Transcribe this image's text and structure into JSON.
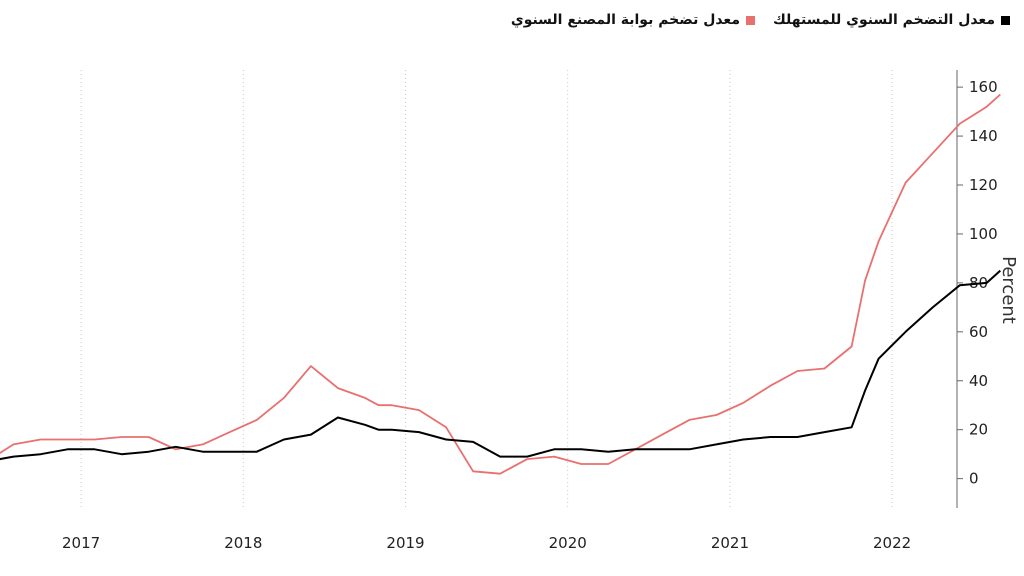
{
  "legend": {
    "cpi": "معدل التضخم السنوي للمستهلك",
    "ppi": "معدل تضخم بوابة المصنع السنوي"
  },
  "chart_data": {
    "type": "line",
    "ylabel": "Percent",
    "ylim": [
      -12,
      167
    ],
    "xlim": [
      2016.5,
      2022.4
    ],
    "yticks": [
      0,
      20,
      40,
      60,
      80,
      100,
      120,
      140,
      160
    ],
    "x_labels": [
      "2017",
      "2018",
      "2019",
      "2020",
      "2021",
      "2022"
    ],
    "x_label_positions": [
      2017,
      2018,
      2019,
      2020,
      2021,
      2022
    ],
    "grid": "vertical dotted",
    "legend_position": "top-right",
    "series": [
      {
        "name": "معدل التضخم السنوي للمستهلك",
        "color": "#000000",
        "x": [
          "2016-06",
          "2016-08",
          "2016-10",
          "2016-12",
          "2017-02",
          "2017-04",
          "2017-06",
          "2017-08",
          "2017-10",
          "2017-12",
          "2018-02",
          "2018-04",
          "2018-06",
          "2018-08",
          "2018-10",
          "2018-11",
          "2018-12",
          "2019-02",
          "2019-04",
          "2019-06",
          "2019-08",
          "2019-10",
          "2019-12",
          "2020-02",
          "2020-04",
          "2020-06",
          "2020-08",
          "2020-10",
          "2020-12",
          "2021-02",
          "2021-04",
          "2021-06",
          "2021-08",
          "2021-10",
          "2021-11",
          "2021-12",
          "2022-02",
          "2022-04",
          "2022-06",
          "2022-08",
          "2022-09"
        ],
        "y": [
          7,
          9,
          10,
          12,
          12,
          10,
          11,
          13,
          11,
          11,
          11,
          16,
          18,
          25,
          22,
          20,
          20,
          19,
          16,
          15,
          9,
          9,
          12,
          12,
          11,
          12,
          12,
          12,
          14,
          16,
          17,
          17,
          19,
          21,
          36,
          49,
          60,
          70,
          79,
          80,
          85
        ]
      },
      {
        "name": "معدل تضخم بوابة المصنع السنوي",
        "color": "#e8706e",
        "x": [
          "2016-06",
          "2016-08",
          "2016-10",
          "2016-12",
          "2017-02",
          "2017-04",
          "2017-06",
          "2017-08",
          "2017-10",
          "2017-12",
          "2018-02",
          "2018-04",
          "2018-06",
          "2018-08",
          "2018-10",
          "2018-11",
          "2018-12",
          "2019-02",
          "2019-04",
          "2019-06",
          "2019-08",
          "2019-10",
          "2019-12",
          "2020-02",
          "2020-04",
          "2020-06",
          "2020-08",
          "2020-10",
          "2020-12",
          "2021-02",
          "2021-04",
          "2021-06",
          "2021-08",
          "2021-10",
          "2021-11",
          "2021-12",
          "2022-02",
          "2022-04",
          "2022-06",
          "2022-08",
          "2022-09"
        ],
        "y": [
          7,
          14,
          16,
          16,
          16,
          17,
          17,
          12,
          14,
          19,
          24,
          33,
          46,
          37,
          33,
          30,
          30,
          28,
          21,
          3,
          2,
          8,
          9,
          6,
          6,
          12,
          18,
          24,
          26,
          31,
          38,
          44,
          45,
          54,
          81,
          97,
          121,
          133,
          145,
          152,
          157
        ]
      }
    ]
  }
}
